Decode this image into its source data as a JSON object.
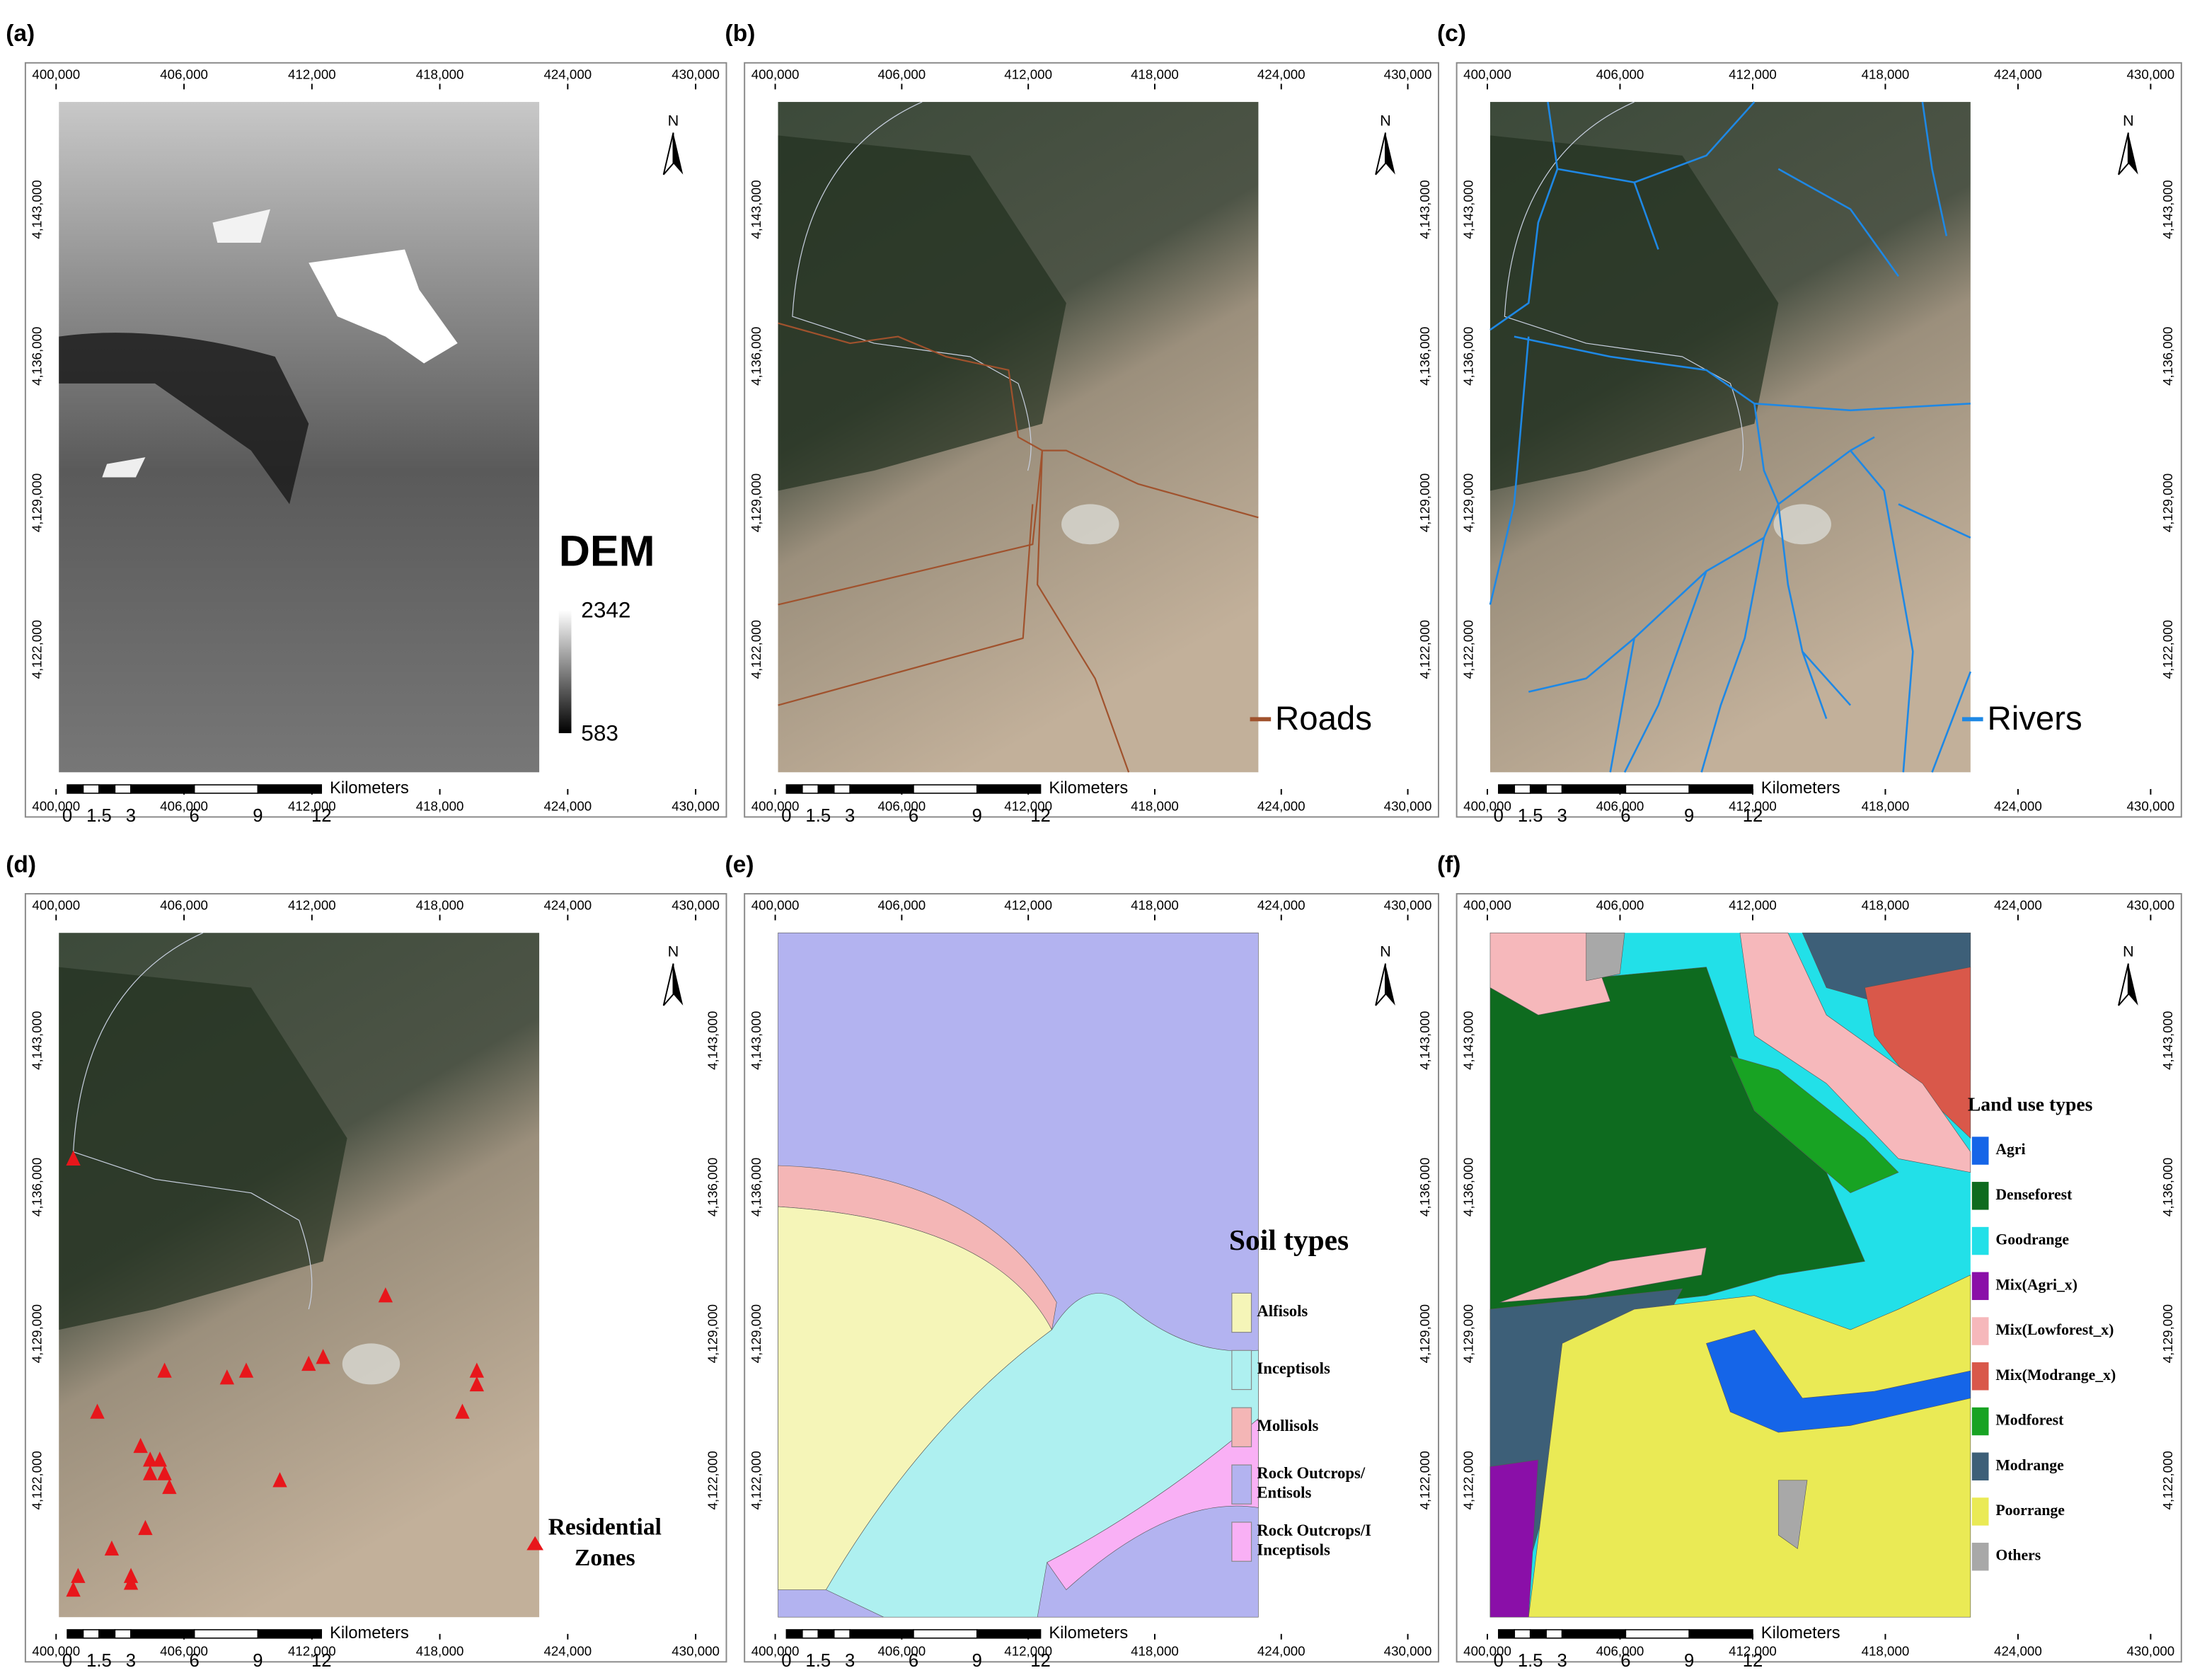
{
  "panels": [
    {
      "label": "(a)",
      "legend": {
        "title": "DEM",
        "max": "2342",
        "min": "583"
      }
    },
    {
      "label": "(b)",
      "legend": {
        "items": [
          {
            "lines": [
              "Roads"
            ],
            "color": "#a0522d"
          }
        ]
      }
    },
    {
      "label": "(c)",
      "legend": {
        "items": [
          {
            "lines": [
              "Rivers"
            ],
            "color": "#1e88e5"
          }
        ]
      }
    },
    {
      "label": "(d)",
      "legend": {
        "items": [
          {
            "lines": [
              "Residential",
              "Zones"
            ],
            "color": "#e8161b"
          }
        ]
      }
    },
    {
      "label": "(e)",
      "legend": {
        "title": "Soil types",
        "items": [
          {
            "lines": [
              "Alfisols"
            ],
            "color": "#f5f5b8"
          },
          {
            "lines": [
              "Inceptisols"
            ],
            "color": "#aef0f0"
          },
          {
            "lines": [
              "Mollisols"
            ],
            "color": "#f4b6b6"
          },
          {
            "lines": [
              "Rock Outcrops/",
              "Entisols"
            ],
            "color": "#b3b3f0"
          },
          {
            "lines": [
              "Rock Outcrops/I",
              "Inceptisols"
            ],
            "color": "#f9b0f5"
          }
        ]
      }
    },
    {
      "label": "(f)",
      "legend": {
        "title": "Land use types",
        "items": [
          {
            "lines": [
              "Agri"
            ],
            "color": "#1565e8"
          },
          {
            "lines": [
              "Denseforest"
            ],
            "color": "#0e6b1f"
          },
          {
            "lines": [
              "Goodrange"
            ],
            "color": "#22e0e8"
          },
          {
            "lines": [
              "Mix(Agri_x)"
            ],
            "color": "#8a0fa8"
          },
          {
            "lines": [
              "Mix(Lowforest_x)"
            ],
            "color": "#f6b8bb"
          },
          {
            "lines": [
              "Mix(Modrange_x)"
            ],
            "color": "#d9584a"
          },
          {
            "lines": [
              "Modforest"
            ],
            "color": "#18a323"
          },
          {
            "lines": [
              "Modrange"
            ],
            "color": "#3d5f78"
          },
          {
            "lines": [
              "Poorrange"
            ],
            "color": "#eaea55"
          },
          {
            "lines": [
              "Others"
            ],
            "color": "#a8a8a8"
          }
        ]
      }
    }
  ],
  "x_ticks": [
    "400,000",
    "406,000",
    "412,000",
    "418,000",
    "424,000",
    "430,000"
  ],
  "y_ticks": [
    "4,143,000",
    "4,136,000",
    "4,129,000",
    "4,122,000"
  ],
  "north": "N",
  "scale_bar": {
    "unit": "Kilometers",
    "labels": [
      "0",
      "1.5",
      "3",
      "6",
      "9",
      "12"
    ]
  }
}
